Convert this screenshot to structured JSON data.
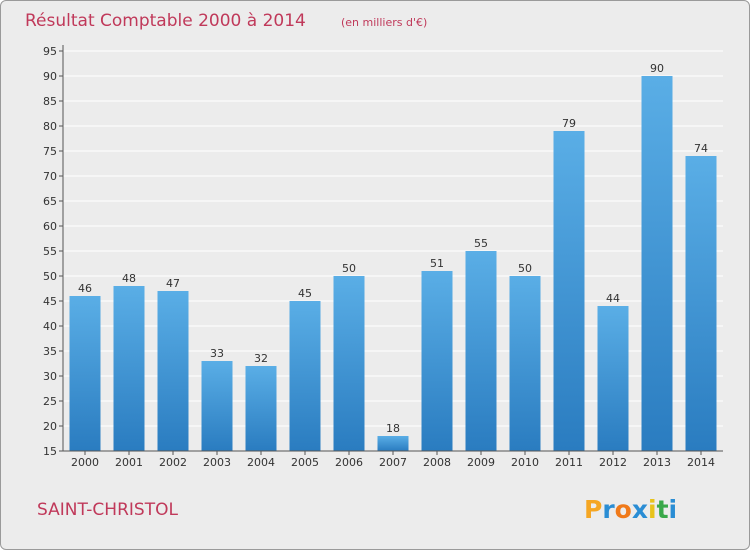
{
  "chart_data": {
    "type": "bar",
    "title": "Résultat Comptable 2000 à 2014",
    "subtitle": "(en milliers d'€)",
    "categories": [
      "2000",
      "2001",
      "2002",
      "2003",
      "2004",
      "2005",
      "2006",
      "2007",
      "2008",
      "2009",
      "2010",
      "2011",
      "2012",
      "2013",
      "2014"
    ],
    "values": [
      46,
      48,
      47,
      33,
      32,
      45,
      50,
      18,
      51,
      55,
      50,
      79,
      44,
      90,
      74
    ],
    "ylim": [
      15,
      95
    ],
    "yticks": [
      15,
      20,
      25,
      30,
      35,
      40,
      45,
      50,
      55,
      60,
      65,
      70,
      75,
      80,
      85,
      90,
      95
    ],
    "xlabel": "",
    "ylabel": "",
    "grid": true,
    "bar_color": "#3a94d8"
  },
  "footer": {
    "commune": "SAINT-CHRISTOL",
    "logo_text": "Proxiti"
  },
  "colors": {
    "accent": "#c0395a",
    "background": "#ececec",
    "logo_letters": [
      "#f5a623",
      "#2a8dd4",
      "#f07a1a",
      "#2a8dd4",
      "#e8c31a",
      "#3aa84a",
      "#2a8dd4"
    ]
  }
}
